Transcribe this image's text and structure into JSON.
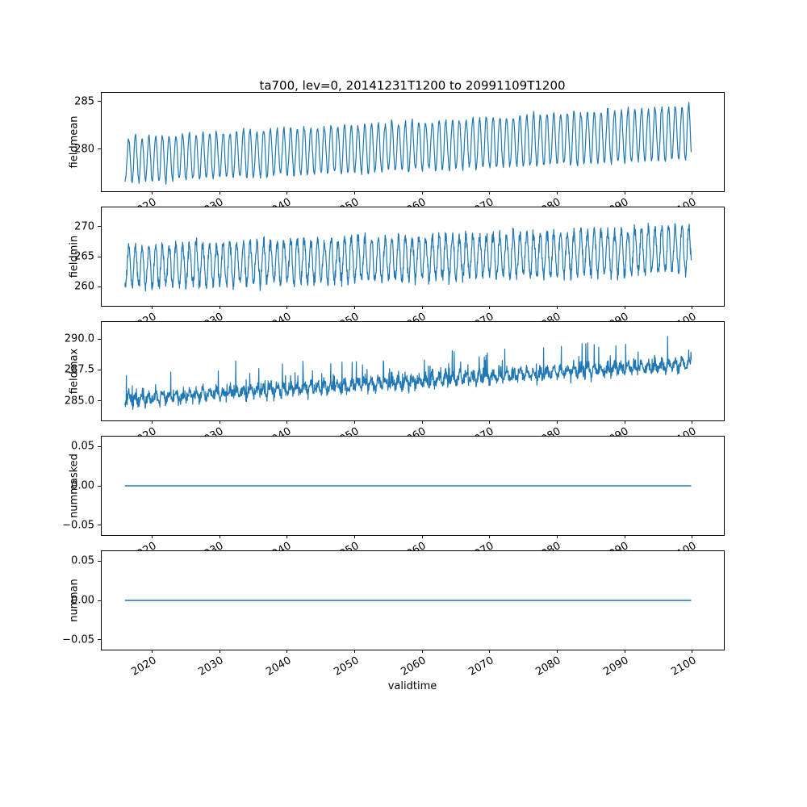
{
  "title": "ta700, lev=0, 20141231T1200 to 20991109T1200",
  "xlabel": "validtime",
  "line_color": "#1f77b4",
  "x": {
    "min": 2012.5,
    "max": 2104.7,
    "data_start": 2015.95,
    "data_end": 2099.86,
    "ticks": [
      2020,
      2030,
      2040,
      2050,
      2060,
      2070,
      2080,
      2090,
      2100
    ],
    "tick_labels": [
      "2020",
      "2030",
      "2040",
      "2050",
      "2060",
      "2070",
      "2080",
      "2090",
      "2100"
    ]
  },
  "chart_data": [
    {
      "name": "fieldmean",
      "type": "line",
      "ylabel": "fieldmean",
      "ylim": [
        275.6,
        285.9
      ],
      "yticks": [
        280,
        285
      ],
      "ytick_labels": [
        "280",
        "285"
      ],
      "approx_range_start": [
        276.3,
        281.4
      ],
      "approx_range_end": [
        279.2,
        285.2
      ],
      "series": {
        "kind": "seasonal",
        "base_start": 278.9,
        "base_end": 281.7,
        "amp_start": 2.3,
        "amp_end": 2.8,
        "noise": 0.35,
        "points_per_year": 12,
        "seed": 1
      }
    },
    {
      "name": "fieldmin",
      "type": "line",
      "ylabel": "fieldmin",
      "ylim": [
        256.8,
        273.2
      ],
      "yticks": [
        260,
        265,
        270
      ],
      "ytick_labels": [
        "260",
        "265",
        "270"
      ],
      "approx_range_start": [
        257.5,
        269.0
      ],
      "approx_range_end": [
        260.0,
        272.5
      ],
      "series": {
        "kind": "seasonal",
        "base_start": 263.3,
        "base_end": 266.2,
        "amp_start": 3.3,
        "amp_end": 3.6,
        "noise": 1.1,
        "points_per_year": 24,
        "seed": 2
      }
    },
    {
      "name": "fieldmax",
      "type": "line",
      "ylabel": "fieldmax",
      "ylim": [
        283.4,
        291.4
      ],
      "yticks": [
        285.0,
        287.5,
        290.0
      ],
      "ytick_labels": [
        "285.0",
        "287.5",
        "290.0"
      ],
      "approx_range_start": [
        283.9,
        286.5
      ],
      "approx_range_end": [
        286.8,
        291.0
      ],
      "series": {
        "kind": "seasonal",
        "base_start": 285.1,
        "base_end": 288.0,
        "amp_start": 0.35,
        "amp_end": 0.35,
        "noise": 0.5,
        "points_per_year": 24,
        "seed": 3,
        "spikes": true,
        "spike_prob": 0.05,
        "spike_size": 2.2
      }
    },
    {
      "name": "nummasked",
      "type": "line",
      "ylabel": "nummasked",
      "ylim": [
        -0.0625,
        0.0625
      ],
      "yticks": [
        -0.05,
        0.0,
        0.05
      ],
      "ytick_labels": [
        "−0.05",
        "0.00",
        "0.05"
      ],
      "series": {
        "kind": "constant",
        "value": 0.0
      }
    },
    {
      "name": "numnan",
      "type": "line",
      "ylabel": "numnan",
      "ylim": [
        -0.0625,
        0.0625
      ],
      "yticks": [
        -0.05,
        0.0,
        0.05
      ],
      "ytick_labels": [
        "−0.05",
        "0.00",
        "0.05"
      ],
      "series": {
        "kind": "constant",
        "value": 0.0
      }
    }
  ]
}
